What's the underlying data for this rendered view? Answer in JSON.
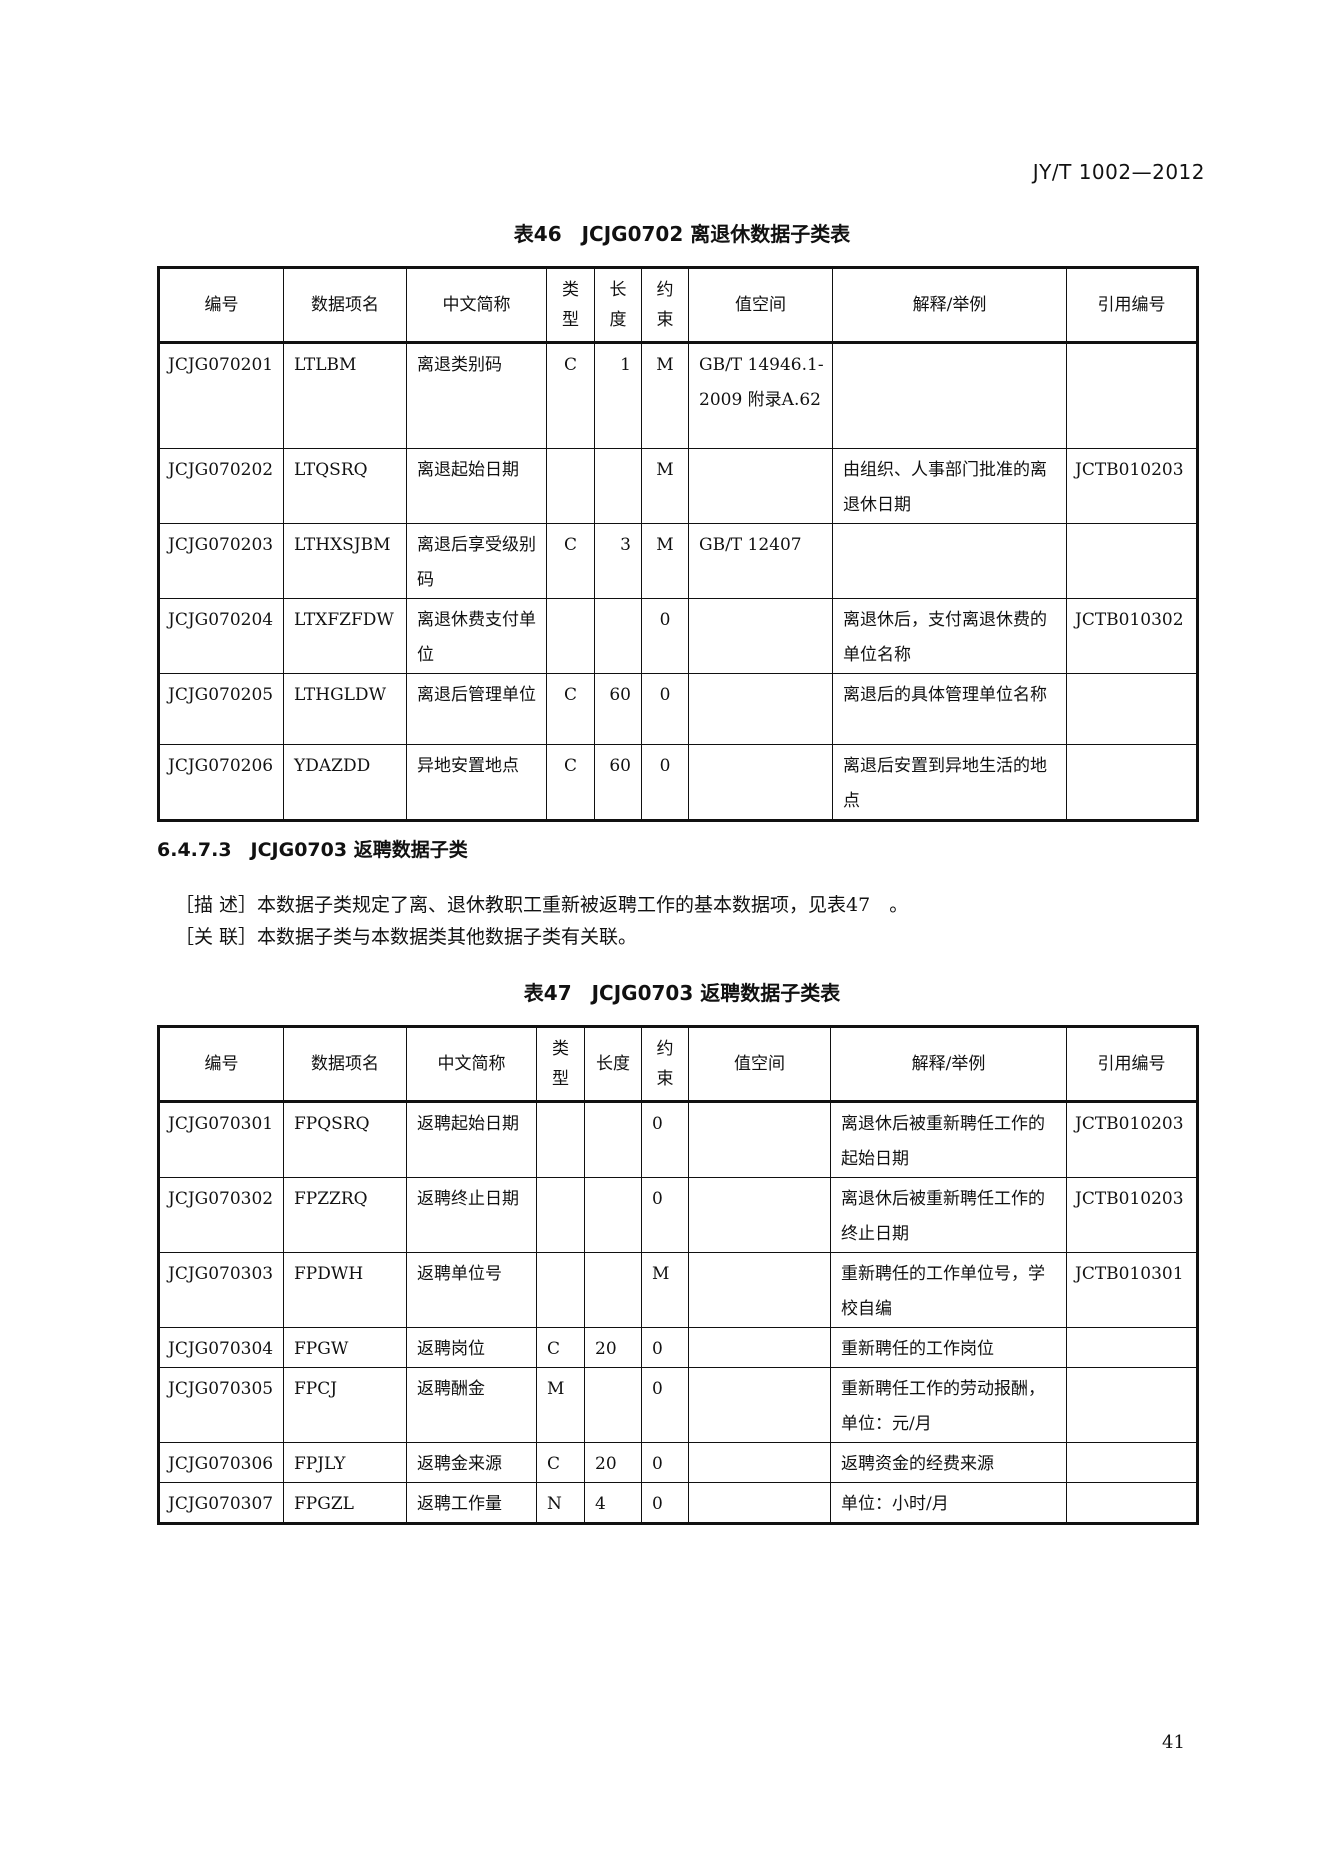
{
  "header": {
    "standard_code": "JY/T 1002—2012"
  },
  "table46": {
    "title": "表46　JCJG0702 离退休数据子类表",
    "columns": [
      "编号",
      "数据项名",
      "中文简称",
      "类型",
      "长度",
      "约束",
      "值空间",
      "解释/举例",
      "引用编号"
    ],
    "rows": [
      [
        "JCJG070201",
        "LTLBM",
        "离退类别码",
        "C",
        "1",
        "M",
        "GB/T 14946.1-2009 附录A.62",
        "",
        ""
      ],
      [
        "JCJG070202",
        "LTQSRQ",
        "离退起始日期",
        "",
        "",
        "M",
        "",
        "由组织、人事部门批准的离退休日期",
        "JCTB010203"
      ],
      [
        "JCJG070203",
        "LTHXSJBM",
        "离退后享受级别码",
        "C",
        "3",
        "M",
        "GB/T 12407",
        "",
        ""
      ],
      [
        "JCJG070204",
        "LTXFZFDW",
        "离退休费支付单位",
        "",
        "",
        "0",
        "",
        "离退休后，支付离退休费的单位名称",
        "JCTB010302"
      ],
      [
        "JCJG070205",
        "LTHGLDW",
        "离退后管理单位",
        "C",
        "60",
        "0",
        "",
        "离退后的具体管理单位名称",
        ""
      ],
      [
        "JCJG070206",
        "YDAZDD",
        "异地安置地点",
        "C",
        "60",
        "0",
        "",
        "离退后安置到异地生活的地点",
        ""
      ]
    ]
  },
  "section": {
    "heading": "6.4.7.3　JCJG0703 返聘数据子类",
    "description": "［描 述］本数据子类规定了离、退休教职工重新被返聘工作的基本数据项，见表47　。",
    "relation": "［关 联］本数据子类与本数据类其他数据子类有关联。"
  },
  "table47": {
    "title": "表47　JCJG0703 返聘数据子类表",
    "columns": [
      "编号",
      "数据项名",
      "中文简称",
      "类型",
      "长度",
      "约束",
      "值空间",
      "解释/举例",
      "引用编号"
    ],
    "rows": [
      [
        "JCJG070301",
        "FPQSRQ",
        "返聘起始日期",
        "",
        "",
        "0",
        "",
        "离退休后被重新聘任工作的起始日期",
        "JCTB010203"
      ],
      [
        "JCJG070302",
        "FPZZRQ",
        "返聘终止日期",
        "",
        "",
        "0",
        "",
        "离退休后被重新聘任工作的终止日期",
        "JCTB010203"
      ],
      [
        "JCJG070303",
        "FPDWH",
        "返聘单位号",
        "",
        "",
        "M",
        "",
        "重新聘任的工作单位号，学校自编",
        "JCTB010301"
      ],
      [
        "JCJG070304",
        "FPGW",
        "返聘岗位",
        "C",
        "20",
        "0",
        "",
        "重新聘任的工作岗位",
        ""
      ],
      [
        "JCJG070305",
        "FPCJ",
        "返聘酬金",
        "M",
        "",
        "0",
        "",
        "重新聘任工作的劳动报酬，单位：元/月",
        ""
      ],
      [
        "JCJG070306",
        "FPJLY",
        "返聘金来源",
        "C",
        "20",
        "0",
        "",
        "返聘资金的经费来源",
        ""
      ],
      [
        "JCJG070307",
        "FPGZL",
        "返聘工作量",
        "N",
        "4",
        "0",
        "",
        "单位：小时/月",
        ""
      ]
    ]
  },
  "footer": {
    "page_number": "41"
  }
}
